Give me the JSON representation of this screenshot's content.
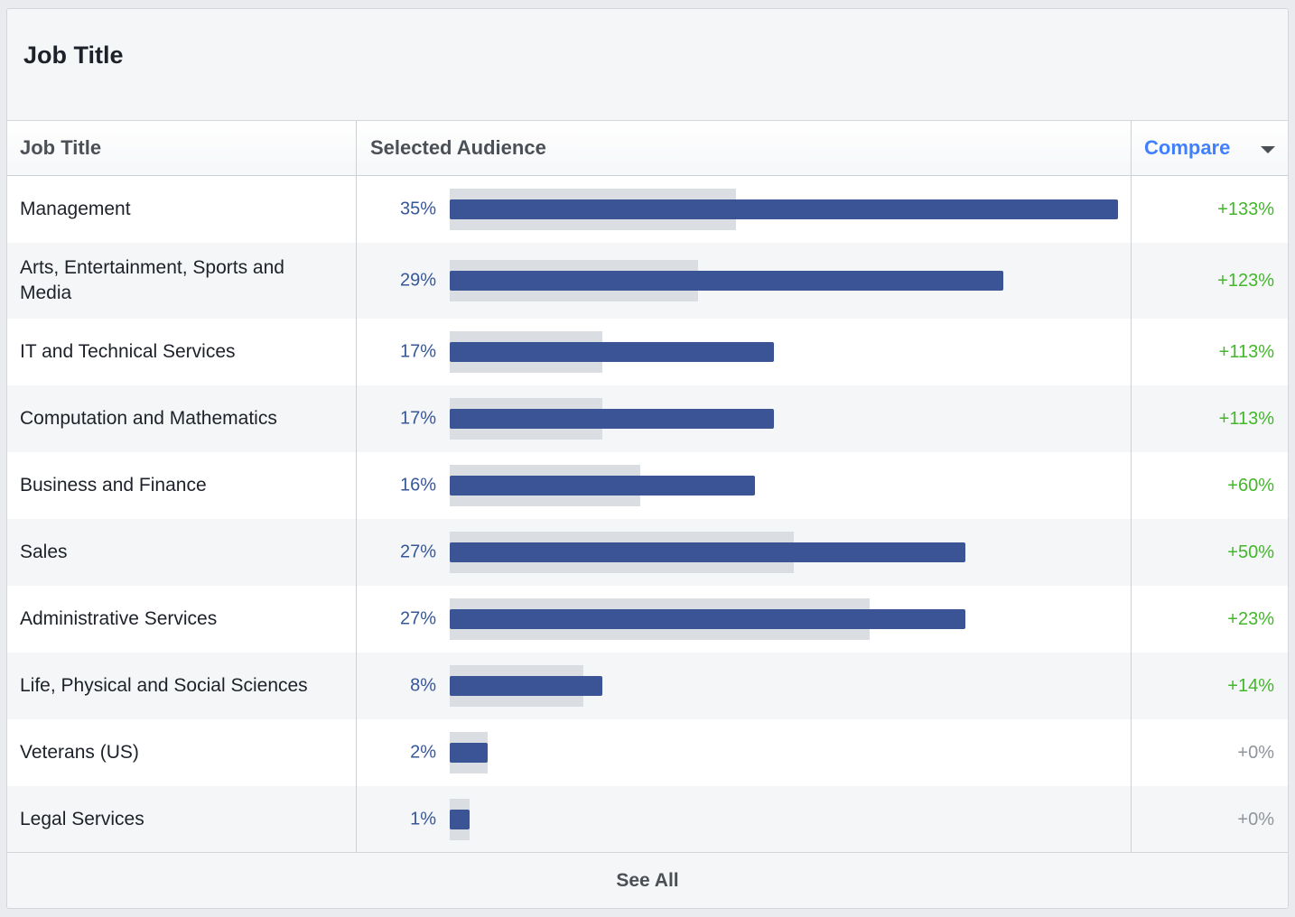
{
  "card": {
    "title": "Job Title"
  },
  "columns": {
    "job_title": "Job Title",
    "selected_audience": "Selected Audience",
    "compare": "Compare"
  },
  "rows": [
    {
      "label": "Management",
      "pct_label": "35%",
      "value": 35,
      "benchmark": 15,
      "diff": "+133%",
      "diff_type": "positive"
    },
    {
      "label": "Arts, Entertainment, Sports and Media",
      "pct_label": "29%",
      "value": 29,
      "benchmark": 13,
      "diff": "+123%",
      "diff_type": "positive"
    },
    {
      "label": "IT and Technical Services",
      "pct_label": "17%",
      "value": 17,
      "benchmark": 8,
      "diff": "+113%",
      "diff_type": "positive"
    },
    {
      "label": "Computation and Mathematics",
      "pct_label": "17%",
      "value": 17,
      "benchmark": 8,
      "diff": "+113%",
      "diff_type": "positive"
    },
    {
      "label": "Business and Finance",
      "pct_label": "16%",
      "value": 16,
      "benchmark": 10,
      "diff": "+60%",
      "diff_type": "positive"
    },
    {
      "label": "Sales",
      "pct_label": "27%",
      "value": 27,
      "benchmark": 18,
      "diff": "+50%",
      "diff_type": "positive"
    },
    {
      "label": "Administrative Services",
      "pct_label": "27%",
      "value": 27,
      "benchmark": 22,
      "diff": "+23%",
      "diff_type": "positive"
    },
    {
      "label": "Life, Physical and Social Sciences",
      "pct_label": "8%",
      "value": 8,
      "benchmark": 7,
      "diff": "+14%",
      "diff_type": "positive"
    },
    {
      "label": "Veterans (US)",
      "pct_label": "2%",
      "value": 2,
      "benchmark": 2,
      "diff": "+0%",
      "diff_type": "neutral"
    },
    {
      "label": "Legal Services",
      "pct_label": "1%",
      "value": 1,
      "benchmark": 1,
      "diff": "+0%",
      "diff_type": "neutral"
    }
  ],
  "scale_max": 35,
  "see_all": "See All",
  "colors": {
    "bar": "#3b5495",
    "benchmark": "#dadde1",
    "pct_text": "#365899",
    "positive": "#42b72a",
    "neutral": "#90949c",
    "link": "#4080ff"
  }
}
